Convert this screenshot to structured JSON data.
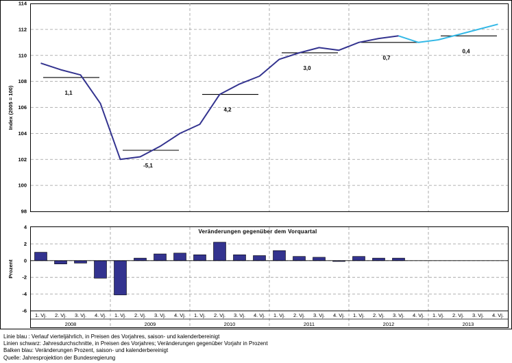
{
  "chart_data": [
    {
      "type": "line",
      "ylabel": "Index (2005 = 100)",
      "ylim": [
        98,
        114
      ],
      "yticks": [
        98,
        100,
        102,
        104,
        106,
        108,
        110,
        112,
        114
      ],
      "grid": true,
      "quarters": [
        "2008 Q1",
        "2008 Q2",
        "2008 Q3",
        "2008 Q4",
        "2009 Q1",
        "2009 Q2",
        "2009 Q3",
        "2009 Q4",
        "2010 Q1",
        "2010 Q2",
        "2010 Q3",
        "2010 Q4",
        "2011 Q1",
        "2011 Q2",
        "2011 Q3",
        "2011 Q4",
        "2012 Q1",
        "2012 Q2",
        "2012 Q3",
        "2012 Q4",
        "2013 Q1",
        "2013 Q2",
        "2013 Q3",
        "2013 Q4"
      ],
      "series": [
        {
          "name": "Verlauf vierteljährlich (Ist)",
          "color": "#33338f",
          "values": [
            109.4,
            108.9,
            108.5,
            106.3,
            102.0,
            102.2,
            103.0,
            104.0,
            104.7,
            107.0,
            107.8,
            108.4,
            109.7,
            110.2,
            110.6,
            110.4,
            111.0,
            111.3,
            111.5,
            null,
            null,
            null,
            null,
            null
          ]
        },
        {
          "name": "Verlauf vierteljährlich (Projektion)",
          "color": "#33b8e6",
          "values": [
            null,
            null,
            null,
            null,
            null,
            null,
            null,
            null,
            null,
            null,
            null,
            null,
            null,
            null,
            null,
            null,
            null,
            null,
            111.5,
            111.0,
            111.2,
            111.6,
            112.0,
            112.4
          ]
        }
      ],
      "annual": [
        {
          "year": "2008",
          "average": 108.3,
          "change_label": "1,1"
        },
        {
          "year": "2009",
          "average": 102.7,
          "change_label": "-5,1"
        },
        {
          "year": "2010",
          "average": 107.0,
          "change_label": "4,2"
        },
        {
          "year": "2011",
          "average": 110.2,
          "change_label": "3,0"
        },
        {
          "year": "2012",
          "average": 111.0,
          "change_label": "0,7"
        },
        {
          "year": "2013",
          "average": 111.5,
          "change_label": "0,4"
        }
      ]
    },
    {
      "type": "bar",
      "title": "Veränderungen gegenüber dem Vorquartal",
      "ylabel": "Prozent",
      "ylim": [
        -6,
        4
      ],
      "yticks": [
        -6,
        -4,
        -2,
        0,
        2,
        4
      ],
      "bar_color": "#33338f",
      "quarter_labels": [
        "1. Vj.",
        "2. Vj.",
        "3. Vj.",
        "4. Vj.",
        "1. Vj.",
        "2. Vj.",
        "3. Vj.",
        "4. Vj.",
        "1. Vj.",
        "2. Vj.",
        "3. Vj.",
        "4. Vj.",
        "1. Vj.",
        "2. Vj.",
        "3. Vj.",
        "4. Vj.",
        "1. Vj.",
        "2. Vj.",
        "3. Vj.",
        "4. Vj.",
        "1. Vj.",
        "2. Vj.",
        "3. Vj.",
        "4. Vj."
      ],
      "years": [
        "2008",
        "2009",
        "2010",
        "2011",
        "2012",
        "2013"
      ],
      "values": [
        1.0,
        -0.4,
        -0.3,
        -2.1,
        -4.1,
        0.3,
        0.8,
        0.9,
        0.7,
        2.2,
        0.7,
        0.6,
        1.2,
        0.5,
        0.4,
        -0.1,
        0.5,
        0.3,
        0.3,
        null,
        null,
        null,
        null,
        null
      ]
    }
  ],
  "notes": [
    "Linie blau :  Verlauf vierteljährlich, in Preisen des Vorjahres, saison- und kalenderbereinigt",
    "Linien schwarz: Jahresdurchschnitte, in Preisen des Vorjahres; Veränderungen gegenüber Vorjahr in Prozent",
    "Balken blau: Veränderungen Prozent, saison- und kalenderbereinigt",
    "Quelle: Jahresprojektion der Bundesregierung"
  ]
}
